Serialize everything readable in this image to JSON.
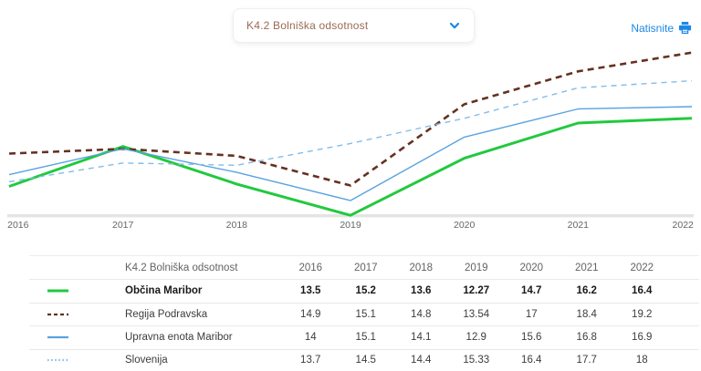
{
  "header": {
    "dropdown": {
      "value": "K4.2 Bolniška odsotnost",
      "chevron_icon": "chevron-down"
    },
    "print": {
      "label": "Natisnite",
      "icon": "printer"
    }
  },
  "colors": {
    "accent_blue": "#1b87e6",
    "dropdown_text": "#9b6a56",
    "table_header_text": "#a2674f",
    "axis_line": "#e4e4e4",
    "tick_text": "#63666a"
  },
  "chart_data": {
    "type": "line",
    "title": "K4.2 Bolniška odsotnost",
    "x": [
      "2016",
      "2017",
      "2018",
      "2019",
      "2020",
      "2021",
      "2022"
    ],
    "xlabel": "",
    "ylabel": "",
    "ylim": [
      12.2,
      19.5
    ],
    "grid": false,
    "legend_position": "table-below",
    "series": [
      {
        "name": "Občina Maribor",
        "values": [
          13.5,
          15.2,
          13.6,
          12.27,
          14.7,
          16.2,
          16.4
        ],
        "color": "#22c93e",
        "style": "solid",
        "width": 3,
        "dash": "",
        "legend_dash": "",
        "bold": true
      },
      {
        "name": "Regija Podravska",
        "values": [
          14.9,
          15.1,
          14.8,
          13.54,
          17,
          18.4,
          19.2
        ],
        "color": "#653121",
        "style": "dashed",
        "width": 2.6,
        "dash": "7,5",
        "legend_dash": "4,3",
        "bold": false
      },
      {
        "name": "Upravna enota Maribor",
        "values": [
          14,
          15.1,
          14.1,
          12.9,
          15.6,
          16.8,
          16.9
        ],
        "color": "#5aa2e0",
        "style": "solid",
        "width": 1.4,
        "dash": "",
        "legend_dash": "",
        "bold": false
      },
      {
        "name": "Slovenija",
        "values": [
          13.7,
          14.5,
          14.4,
          15.33,
          16.4,
          17.7,
          18
        ],
        "color": "#83bce9",
        "style": "dashed",
        "width": 1.4,
        "dash": "6,5",
        "legend_dash": "1.5,2.6",
        "bold": false
      }
    ]
  },
  "table": {
    "header_label": "K4.2 Bolniška odsotnost",
    "columns": [
      "2016",
      "2017",
      "2018",
      "2019",
      "2020",
      "2021",
      "2022"
    ]
  }
}
